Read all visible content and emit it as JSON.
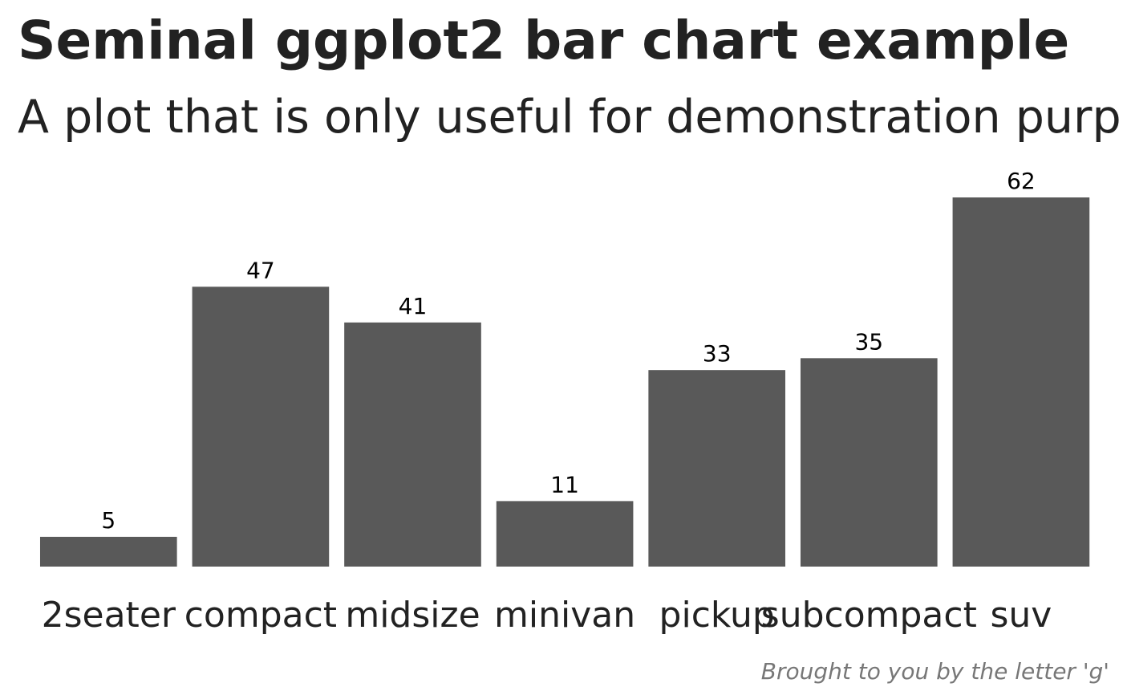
{
  "chart_data": {
    "type": "bar",
    "title": "Seminal ggplot2 bar chart example",
    "subtitle": "A plot that is only useful for demonstration purposes",
    "caption": "Brought to you by the letter 'g'",
    "categories": [
      "2seater",
      "compact",
      "midsize",
      "minivan",
      "pickup",
      "subcompact",
      "suv"
    ],
    "values": [
      5,
      47,
      41,
      11,
      33,
      35,
      62
    ],
    "color": "#595959"
  }
}
